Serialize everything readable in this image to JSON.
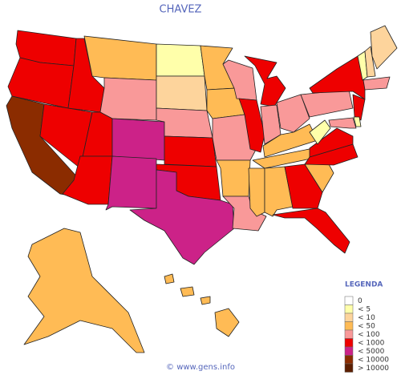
{
  "title": "CHAVEZ",
  "legend": {
    "title": "LEGENDA",
    "items": [
      {
        "label": "0",
        "color": "#ffffff"
      },
      {
        "label": "< 5",
        "color": "#ffffaa"
      },
      {
        "label": "< 10",
        "color": "#fdd49c"
      },
      {
        "label": "< 50",
        "color": "#ffbb55"
      },
      {
        "label": "< 100",
        "color": "#f99999"
      },
      {
        "label": "< 1000",
        "color": "#ee0000"
      },
      {
        "label": "< 5000",
        "color": "#cc2288"
      },
      {
        "label": "< 10000",
        "color": "#8b2c00"
      },
      {
        "label": "> 10000",
        "color": "#5c1e00"
      }
    ]
  },
  "footer": "© www.gens.info"
}
